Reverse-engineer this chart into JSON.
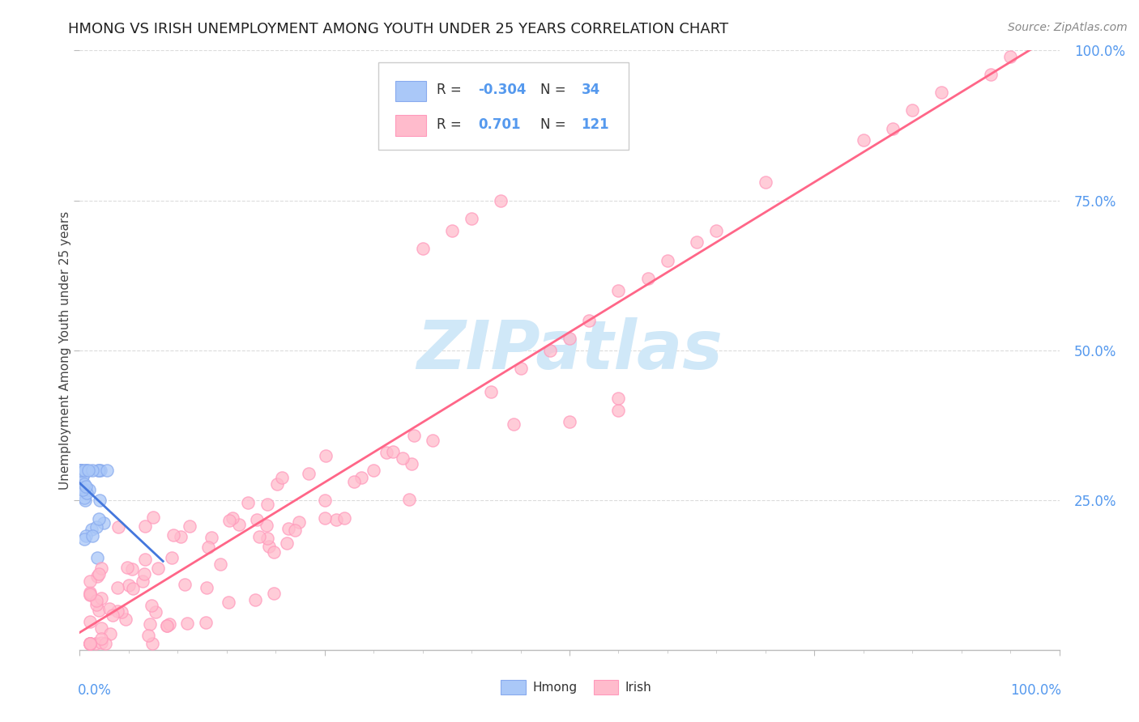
{
  "title": "HMONG VS IRISH UNEMPLOYMENT AMONG YOUTH UNDER 25 YEARS CORRELATION CHART",
  "source": "Source: ZipAtlas.com",
  "ylabel": "Unemployment Among Youth under 25 years",
  "xlim": [
    0,
    1
  ],
  "ylim": [
    0,
    1
  ],
  "ytick_positions": [
    0.25,
    0.5,
    0.75,
    1.0
  ],
  "ytick_labels": [
    "25.0%",
    "50.0%",
    "75.0%",
    "100.0%"
  ],
  "legend_r1": "-0.304",
  "legend_n1": "34",
  "legend_r2": "0.701",
  "legend_n2": "121",
  "hmong_fill_color": "#aac8f8",
  "hmong_edge_color": "#88aaee",
  "irish_fill_color": "#ffbbcc",
  "irish_edge_color": "#ff99bb",
  "hmong_line_color": "#4477dd",
  "irish_line_color": "#ff6688",
  "watermark_color": "#d0e8f8",
  "background_color": "#ffffff",
  "grid_color": "#cccccc",
  "title_color": "#222222",
  "axis_label_color": "#5599ee",
  "legend_r_color": "#5599ee",
  "source_color": "#888888"
}
